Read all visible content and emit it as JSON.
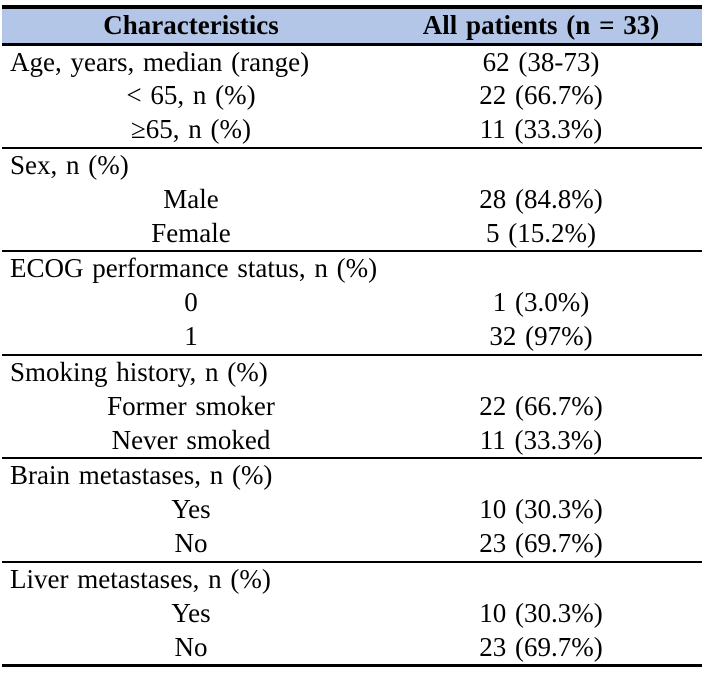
{
  "colors": {
    "header_bg": "#b4c6e7",
    "rule": "#000000",
    "text": "#000000"
  },
  "table": {
    "header": {
      "characteristics": "Characteristics",
      "all_patients": "All patients (n = 33)"
    },
    "sections": [
      {
        "rows": [
          {
            "label": "Age, years, median (range)",
            "value": "62 (38-73)"
          },
          {
            "label": "< 65, n (%)",
            "value": "22 (66.7%)"
          },
          {
            "label": "≥65, n (%)",
            "value": "11 (33.3%)"
          }
        ]
      },
      {
        "rows": [
          {
            "label": "Sex, n (%)",
            "value": ""
          },
          {
            "label": "Male",
            "value": "28 (84.8%)"
          },
          {
            "label": "Female",
            "value": "5 (15.2%)"
          }
        ]
      },
      {
        "rows": [
          {
            "label": "ECOG performance status, n (%)",
            "value": ""
          },
          {
            "label": "0",
            "value": "1 (3.0%)"
          },
          {
            "label": "1",
            "value": "32 (97%)"
          }
        ]
      },
      {
        "rows": [
          {
            "label": "Smoking history, n (%)",
            "value": ""
          },
          {
            "label": "Former smoker",
            "value": "22 (66.7%)"
          },
          {
            "label": "Never smoked",
            "value": "11 (33.3%)"
          }
        ]
      },
      {
        "rows": [
          {
            "label": "Brain metastases, n (%)",
            "value": ""
          },
          {
            "label": "Yes",
            "value": "10 (30.3%)"
          },
          {
            "label": "No",
            "value": "23 (69.7%)"
          }
        ]
      },
      {
        "rows": [
          {
            "label": "Liver metastases, n (%)",
            "value": ""
          },
          {
            "label": "Yes",
            "value": "10 (30.3%)"
          },
          {
            "label": "No",
            "value": "23 (69.7%)"
          }
        ]
      }
    ]
  }
}
